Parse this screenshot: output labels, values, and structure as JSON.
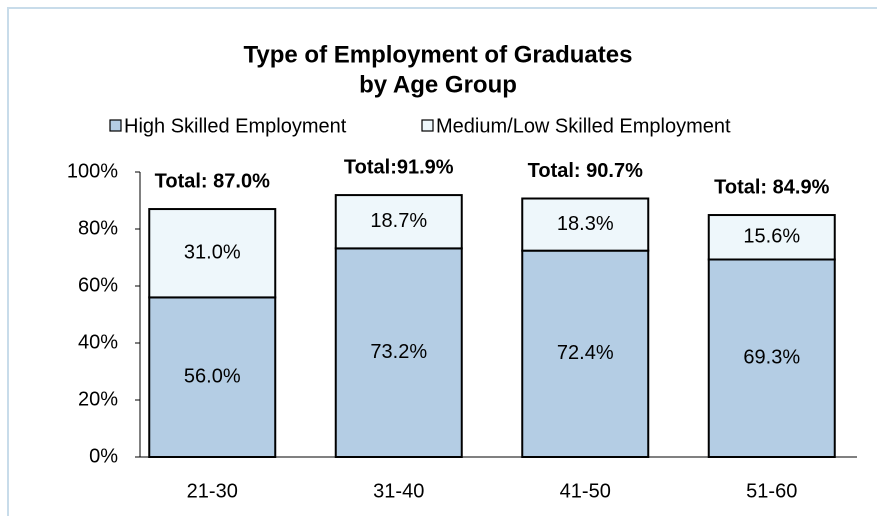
{
  "chart_data": {
    "type": "stacked_bar",
    "title": [
      "Type of Employment of Graduates",
      "by Age Group"
    ],
    "categories": [
      "21-30",
      "31-40",
      "41-50",
      "51-60"
    ],
    "series": [
      {
        "name": "High Skilled Employment",
        "color": "#b4cde4",
        "values": [
          56.0,
          73.2,
          72.4,
          69.3
        ],
        "value_labels": [
          "56.0%",
          "73.2%",
          "72.4%",
          "69.3%"
        ]
      },
      {
        "name": "Medium/Low Skilled Employment",
        "color": "#eef7fb",
        "values": [
          31.0,
          18.7,
          18.3,
          15.6
        ],
        "value_labels": [
          "31.0%",
          "18.7%",
          "18.3%",
          "15.6%"
        ]
      }
    ],
    "annotations": [
      "Total: 87.0%",
      "Total:91.9%",
      "Total: 90.7%",
      "Total: 84.9%"
    ],
    "ylim": [
      0,
      100
    ],
    "yticks": [
      {
        "value": 0,
        "label": "0%"
      },
      {
        "value": 20,
        "label": "20%"
      },
      {
        "value": 40,
        "label": "40%"
      },
      {
        "value": 60,
        "label": "60%"
      },
      {
        "value": 80,
        "label": "80%"
      },
      {
        "value": 100,
        "label": "100%"
      }
    ],
    "legend": "top",
    "grid": false
  }
}
